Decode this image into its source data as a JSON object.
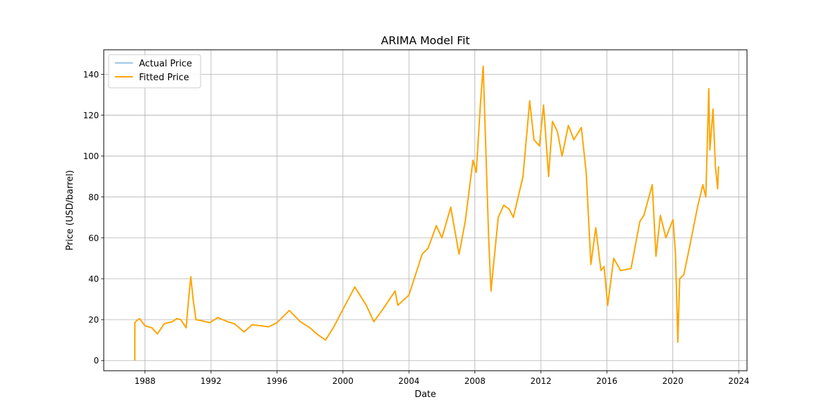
{
  "chart_data": {
    "type": "line",
    "title": "ARIMA Model Fit",
    "xlabel": "Date",
    "ylabel": "Price (USD/barrel)",
    "x_ticks": [
      "1988",
      "1992",
      "1996",
      "2000",
      "2004",
      "2008",
      "2012",
      "2016",
      "2020",
      "2024"
    ],
    "y_ticks": [
      "0",
      "20",
      "40",
      "60",
      "80",
      "100",
      "120",
      "140"
    ],
    "xlim": [
      "1985-07-01",
      "2024-07-01"
    ],
    "ylim": [
      -5,
      152
    ],
    "grid": true,
    "legend_position": "top-left",
    "series": [
      {
        "name": "Actual Price",
        "color": "#7fb2e0",
        "x": [
          "1987-05-20",
          "1987-07-01",
          "1987-09-01",
          "1988-01-01",
          "1988-06-01",
          "1988-10-01",
          "1989-03-01",
          "1989-09-01",
          "1989-12-01",
          "1990-03-01",
          "1990-07-01",
          "1990-08-15",
          "1990-10-10",
          "1990-12-01",
          "1991-02-01",
          "1991-06-01",
          "1991-12-01",
          "1992-06-01",
          "1993-01-01",
          "1993-06-01",
          "1994-01-01",
          "1994-07-01",
          "1995-01-01",
          "1995-07-01",
          "1996-01-01",
          "1996-10-01",
          "1997-06-01",
          "1998-01-01",
          "1998-06-01",
          "1998-12-10",
          "1999-06-01",
          "2000-01-01",
          "2000-09-20",
          "2001-06-01",
          "2001-11-15",
          "2002-06-01",
          "2003-03-01",
          "2003-05-01",
          "2004-01-01",
          "2004-10-20",
          "2005-03-01",
          "2005-08-30",
          "2006-01-01",
          "2006-07-15",
          "2007-01-15",
          "2007-06-01",
          "2007-11-20",
          "2008-02-01",
          "2008-05-01",
          "2008-07-03",
          "2008-09-01",
          "2008-11-01",
          "2008-12-22",
          "2009-06-01",
          "2009-10-01",
          "2010-02-01",
          "2010-05-01",
          "2010-12-01",
          "2011-04-29",
          "2011-08-01",
          "2011-12-01",
          "2012-03-01",
          "2012-06-20",
          "2012-09-14",
          "2013-01-01",
          "2013-04-15",
          "2013-09-01",
          "2014-01-01",
          "2014-06-15",
          "2014-10-01",
          "2015-01-13",
          "2015-05-01",
          "2015-08-24",
          "2015-11-01",
          "2016-01-20",
          "2016-06-01",
          "2016-11-01",
          "2017-06-20",
          "2018-01-01",
          "2018-04-01",
          "2018-10-03",
          "2018-12-24",
          "2019-04-01",
          "2019-08-01",
          "2020-01-06",
          "2020-03-01",
          "2020-04-21",
          "2020-06-01",
          "2020-09-01",
          "2021-01-01",
          "2021-07-01",
          "2021-10-26",
          "2022-01-01",
          "2022-03-08",
          "2022-04-01",
          "2022-06-10",
          "2022-08-01",
          "2022-09-20",
          "2022-10-10"
        ],
        "y": [
          18.5,
          19.5,
          20.5,
          17.0,
          16.0,
          13.0,
          18.0,
          19.0,
          20.5,
          20.0,
          16.0,
          28.0,
          41.0,
          30.0,
          20.0,
          19.5,
          18.5,
          21.0,
          19.0,
          18.0,
          14.0,
          17.5,
          17.0,
          16.5,
          18.5,
          24.5,
          19.0,
          16.0,
          13.0,
          10.0,
          16.0,
          25.0,
          36.0,
          27.0,
          19.0,
          25.0,
          34.0,
          27.0,
          32.0,
          52.0,
          55.0,
          66.0,
          60.0,
          75.0,
          52.0,
          68.0,
          98.0,
          92.0,
          125.0,
          144.0,
          102.0,
          60.0,
          34.0,
          70.0,
          76.0,
          74.0,
          70.0,
          90.0,
          127.0,
          108.0,
          105.0,
          125.0,
          90.0,
          117.0,
          112.0,
          100.0,
          115.0,
          108.0,
          114.0,
          92.0,
          47.0,
          65.0,
          44.0,
          46.0,
          27.0,
          50.0,
          44.0,
          45.0,
          68.0,
          71.0,
          86.0,
          51.0,
          71.0,
          60.0,
          69.0,
          52.0,
          9.0,
          40.0,
          42.0,
          55.0,
          75.0,
          86.0,
          80.0,
          133.0,
          103.0,
          123.0,
          95.0,
          84.0,
          95.0
        ]
      },
      {
        "name": "Fitted Price",
        "color": "#ffa500",
        "x": [
          "1987-05-20",
          "1987-05-21",
          "1987-07-01",
          "1987-09-01",
          "1988-01-01",
          "1988-06-01",
          "1988-10-01",
          "1989-03-01",
          "1989-09-01",
          "1989-12-01",
          "1990-03-01",
          "1990-07-01",
          "1990-08-15",
          "1990-10-10",
          "1990-12-01",
          "1991-02-01",
          "1991-06-01",
          "1991-12-01",
          "1992-06-01",
          "1993-01-01",
          "1993-06-01",
          "1994-01-01",
          "1994-07-01",
          "1995-01-01",
          "1995-07-01",
          "1996-01-01",
          "1996-10-01",
          "1997-06-01",
          "1998-01-01",
          "1998-06-01",
          "1998-12-10",
          "1999-06-01",
          "2000-01-01",
          "2000-09-20",
          "2001-06-01",
          "2001-11-15",
          "2002-06-01",
          "2003-03-01",
          "2003-05-01",
          "2004-01-01",
          "2004-10-20",
          "2005-03-01",
          "2005-08-30",
          "2006-01-01",
          "2006-07-15",
          "2007-01-15",
          "2007-06-01",
          "2007-11-20",
          "2008-02-01",
          "2008-05-01",
          "2008-07-03",
          "2008-09-01",
          "2008-11-01",
          "2008-12-22",
          "2009-06-01",
          "2009-10-01",
          "2010-02-01",
          "2010-05-01",
          "2010-12-01",
          "2011-04-29",
          "2011-08-01",
          "2011-12-01",
          "2012-03-01",
          "2012-06-20",
          "2012-09-14",
          "2013-01-01",
          "2013-04-15",
          "2013-09-01",
          "2014-01-01",
          "2014-06-15",
          "2014-10-01",
          "2015-01-13",
          "2015-05-01",
          "2015-08-24",
          "2015-11-01",
          "2016-01-20",
          "2016-06-01",
          "2016-11-01",
          "2017-06-20",
          "2018-01-01",
          "2018-04-01",
          "2018-10-03",
          "2018-12-24",
          "2019-04-01",
          "2019-08-01",
          "2020-01-06",
          "2020-03-01",
          "2020-04-21",
          "2020-06-01",
          "2020-09-01",
          "2021-01-01",
          "2021-07-01",
          "2021-10-26",
          "2022-01-01",
          "2022-03-08",
          "2022-04-01",
          "2022-06-10",
          "2022-08-01",
          "2022-09-20",
          "2022-10-10"
        ],
        "y": [
          0.0,
          18.5,
          19.5,
          20.5,
          17.0,
          16.0,
          13.0,
          18.0,
          19.0,
          20.5,
          20.0,
          16.0,
          28.0,
          41.0,
          30.0,
          20.0,
          19.5,
          18.5,
          21.0,
          19.0,
          18.0,
          14.0,
          17.5,
          17.0,
          16.5,
          18.5,
          24.5,
          19.0,
          16.0,
          13.0,
          10.0,
          16.0,
          25.0,
          36.0,
          27.0,
          19.0,
          25.0,
          34.0,
          27.0,
          32.0,
          52.0,
          55.0,
          66.0,
          60.0,
          75.0,
          52.0,
          68.0,
          98.0,
          92.0,
          125.0,
          144.0,
          102.0,
          60.0,
          34.0,
          70.0,
          76.0,
          74.0,
          70.0,
          90.0,
          127.0,
          108.0,
          105.0,
          125.0,
          90.0,
          117.0,
          112.0,
          100.0,
          115.0,
          108.0,
          114.0,
          92.0,
          47.0,
          65.0,
          44.0,
          46.0,
          27.0,
          50.0,
          44.0,
          45.0,
          68.0,
          71.0,
          86.0,
          51.0,
          71.0,
          60.0,
          69.0,
          52.0,
          9.0,
          40.0,
          42.0,
          55.0,
          75.0,
          86.0,
          80.0,
          133.0,
          103.0,
          123.0,
          95.0,
          84.0,
          95.0
        ]
      }
    ]
  }
}
